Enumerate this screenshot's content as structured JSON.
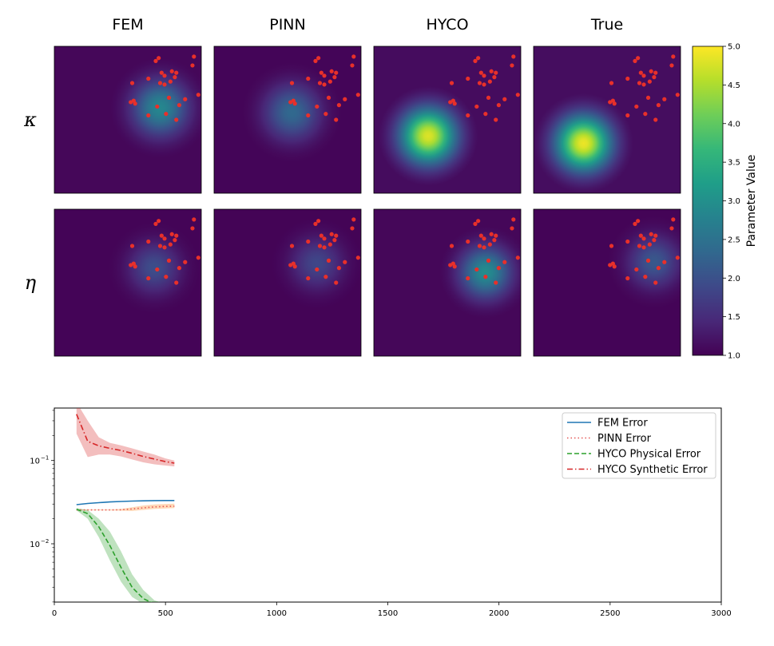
{
  "figure": {
    "column_titles": [
      "FEM",
      "PINN",
      "HYCO",
      "True"
    ],
    "row_labels": [
      "κ",
      "η"
    ],
    "colormap": [
      "#440154",
      "#482878",
      "#3e4989",
      "#31688e",
      "#26828e",
      "#1f9e89",
      "#35b779",
      "#6ece58",
      "#b5de2b",
      "#fde725"
    ]
  },
  "chart_data": [
    {
      "type": "heatmap",
      "title": "",
      "grid": false,
      "domain_note": "normalized unit square, y up",
      "value_range": [
        1.0,
        5.0
      ],
      "colorbar": {
        "label": "Parameter Value",
        "ticks": [
          1.0,
          1.5,
          2.0,
          2.5,
          3.0,
          3.5,
          4.0,
          4.5,
          5.0
        ],
        "tick_labels": [
          "1.0",
          "1.5",
          "2.0",
          "2.5",
          "3.0",
          "3.5",
          "4.0",
          "4.5",
          "5.0"
        ]
      },
      "sensor_points": [
        [
          0.69,
          0.9
        ],
        [
          0.71,
          0.92
        ],
        [
          0.95,
          0.93
        ],
        [
          0.94,
          0.87
        ],
        [
          0.73,
          0.82
        ],
        [
          0.75,
          0.8
        ],
        [
          0.8,
          0.83
        ],
        [
          0.83,
          0.82
        ],
        [
          0.82,
          0.79
        ],
        [
          0.64,
          0.78
        ],
        [
          0.53,
          0.75
        ],
        [
          0.72,
          0.75
        ],
        [
          0.75,
          0.74
        ],
        [
          0.79,
          0.76
        ],
        [
          0.98,
          0.67
        ],
        [
          0.89,
          0.64
        ],
        [
          0.78,
          0.65
        ],
        [
          0.54,
          0.63
        ],
        [
          0.55,
          0.61
        ],
        [
          0.52,
          0.62
        ],
        [
          0.85,
          0.6
        ],
        [
          0.7,
          0.59
        ],
        [
          0.76,
          0.54
        ],
        [
          0.64,
          0.53
        ],
        [
          0.83,
          0.5
        ]
      ],
      "panels": [
        {
          "row": "κ",
          "column": "FEM",
          "peak_value": 2.85,
          "center": [
            0.72,
            0.58
          ],
          "spread": 0.13
        },
        {
          "row": "κ",
          "column": "PINN",
          "peak_value": 2.35,
          "center": [
            0.53,
            0.55
          ],
          "spread": 0.13
        },
        {
          "row": "κ",
          "column": "HYCO",
          "peak_value": 4.8,
          "center": [
            0.37,
            0.39
          ],
          "spread": 0.13
        },
        {
          "row": "κ",
          "column": "True",
          "peak_value": 4.9,
          "center": [
            0.34,
            0.34
          ],
          "spread": 0.13
        },
        {
          "row": "η",
          "column": "FEM",
          "peak_value": 1.95,
          "center": [
            0.68,
            0.6
          ],
          "spread": 0.12
        },
        {
          "row": "η",
          "column": "PINN",
          "peak_value": 1.85,
          "center": [
            0.7,
            0.63
          ],
          "spread": 0.12
        },
        {
          "row": "η",
          "column": "HYCO",
          "peak_value": 2.95,
          "center": [
            0.76,
            0.57
          ],
          "spread": 0.12
        },
        {
          "row": "η",
          "column": "True",
          "peak_value": 2.1,
          "center": [
            0.82,
            0.64
          ],
          "spread": 0.12
        }
      ]
    },
    {
      "type": "line",
      "title": "",
      "xlabel": "",
      "ylabel": "",
      "xlim": [
        0,
        3000
      ],
      "ylim_log10": [
        -2.7,
        -0.37
      ],
      "yscale": "log",
      "grid": false,
      "legend_position": "top-right",
      "xticks": [
        0,
        500,
        1000,
        1500,
        2000,
        2500,
        3000
      ],
      "xtick_labels": [
        "0",
        "500",
        "1000",
        "1500",
        "2000",
        "2500",
        "3000"
      ],
      "yticks_log10": [
        -2,
        -1
      ],
      "ytick_labels": [
        "10",
        "10"
      ],
      "ytick_exponents": [
        "−2",
        "−1"
      ],
      "x": [
        100,
        150,
        200,
        250,
        300,
        350,
        400,
        450,
        500,
        540
      ],
      "series": [
        {
          "name": "FEM Error",
          "color": "#1f77b4",
          "style": "solid",
          "values": [
            0.0295,
            0.0305,
            0.0312,
            0.0318,
            0.0322,
            0.0326,
            0.0328,
            0.033,
            0.0331,
            0.0331
          ],
          "band_low": [
            0.0293,
            0.0302,
            0.0309,
            0.0315,
            0.0319,
            0.0323,
            0.0325,
            0.0327,
            0.0328,
            0.0328
          ],
          "band_high": [
            0.0297,
            0.0308,
            0.0315,
            0.0321,
            0.0325,
            0.0329,
            0.0331,
            0.0333,
            0.0334,
            0.0334
          ]
        },
        {
          "name": "PINN Error",
          "color": "#ff7f0e",
          "line_color": "#e45756",
          "style": "dotted",
          "values": [
            0.0255,
            0.0255,
            0.0255,
            0.0255,
            0.0256,
            0.0262,
            0.027,
            0.0277,
            0.0281,
            0.0283
          ],
          "band_low": [
            0.0252,
            0.0252,
            0.0252,
            0.0252,
            0.025,
            0.0248,
            0.0255,
            0.0262,
            0.0266,
            0.0268
          ],
          "band_high": [
            0.0258,
            0.0258,
            0.0258,
            0.0258,
            0.0262,
            0.0275,
            0.0288,
            0.0296,
            0.0301,
            0.0303
          ]
        },
        {
          "name": "HYCO Physical Error",
          "color": "#2ca02c",
          "style": "dashed",
          "values": [
            0.026,
            0.023,
            0.016,
            0.0095,
            0.0052,
            0.003,
            0.0022,
            0.0019,
            0.0018,
            0.0018
          ],
          "band_low": [
            0.0252,
            0.02,
            0.012,
            0.0063,
            0.0035,
            0.0023,
            0.0019,
            0.0018,
            0.0018,
            0.0018
          ],
          "band_high": [
            0.0268,
            0.0255,
            0.02,
            0.014,
            0.0081,
            0.0043,
            0.0028,
            0.0021,
            0.0019,
            0.0019
          ]
        },
        {
          "name": "HYCO Synthetic Error",
          "color": "#d62728",
          "style": "dashdot",
          "values": [
            0.36,
            0.17,
            0.15,
            0.14,
            0.132,
            0.122,
            0.112,
            0.104,
            0.097,
            0.093
          ],
          "band_low": [
            0.21,
            0.11,
            0.118,
            0.118,
            0.112,
            0.103,
            0.095,
            0.09,
            0.087,
            0.085
          ],
          "band_high": [
            0.5,
            0.3,
            0.19,
            0.163,
            0.152,
            0.14,
            0.128,
            0.118,
            0.106,
            0.1
          ]
        }
      ]
    }
  ]
}
